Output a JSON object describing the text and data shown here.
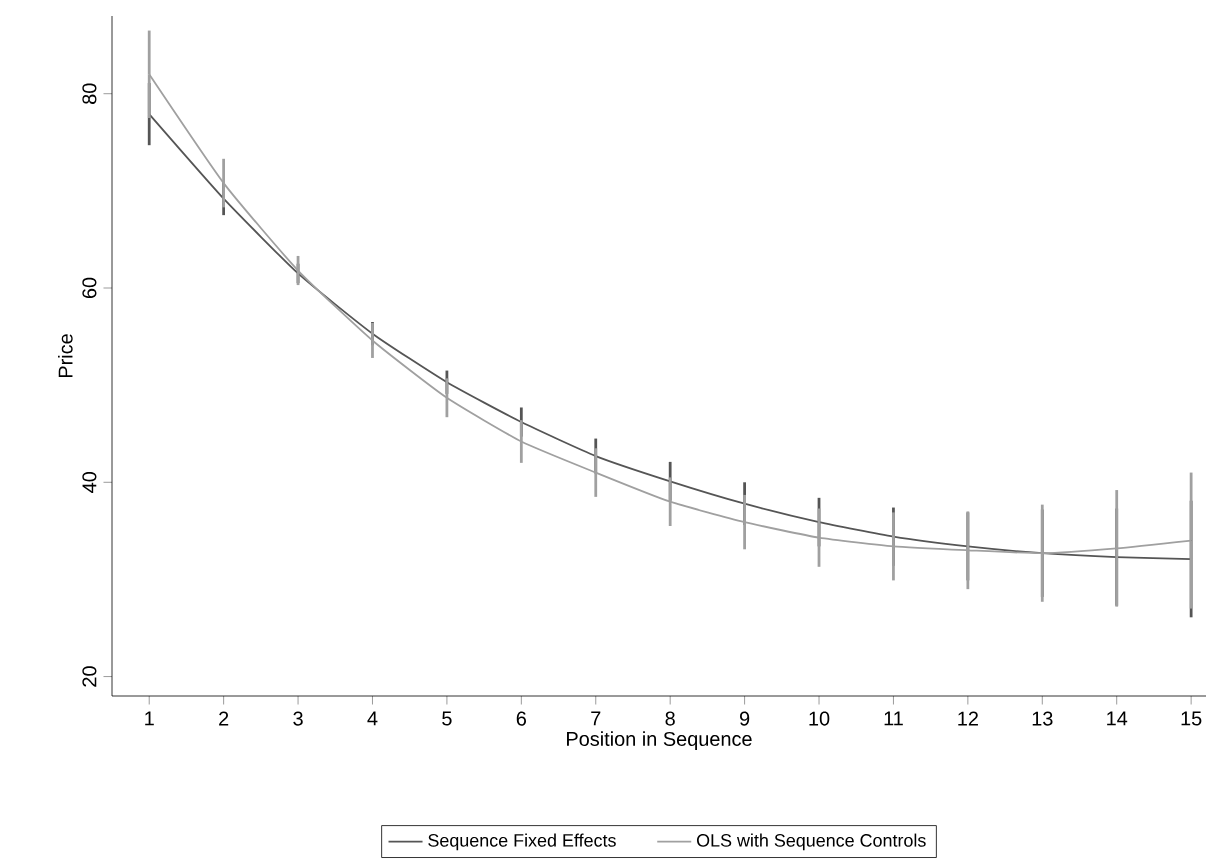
{
  "chart_data": {
    "type": "line",
    "xlabel": "Position in Sequence",
    "ylabel": "Price",
    "x": [
      1,
      2,
      3,
      4,
      5,
      6,
      7,
      8,
      9,
      10,
      11,
      12,
      13,
      14,
      15
    ],
    "series": [
      {
        "name": "Sequence Fixed Effects",
        "color": "#555555",
        "values": [
          77.9,
          69.2,
          61.5,
          55.3,
          50.3,
          46.2,
          42.7,
          40.1,
          37.8,
          35.9,
          34.4,
          33.4,
          32.7,
          32.3,
          32.1
        ],
        "errors": [
          3.2,
          1.7,
          1,
          1.2,
          1.2,
          1.5,
          1.8,
          2,
          2.2,
          2.5,
          3,
          3.5,
          4.5,
          5,
          6
        ]
      },
      {
        "name": "OLS with Sequence Controls",
        "color": "#a0a0a0",
        "values": [
          82.0,
          70.8,
          61.8,
          54.6,
          48.7,
          44.2,
          41.0,
          38.0,
          35.9,
          34.3,
          33.4,
          33.0,
          32.7,
          33.2,
          34.0
        ],
        "errors": [
          4.5,
          2.5,
          1.5,
          1.8,
          2,
          2.2,
          2.5,
          2.5,
          2.8,
          3,
          3.5,
          4,
          5,
          6,
          7
        ]
      }
    ],
    "xlim": [
      0.5,
      15.2
    ],
    "ylim": [
      18,
      88
    ],
    "xticks": [
      1,
      2,
      3,
      4,
      5,
      6,
      7,
      8,
      9,
      10,
      11,
      12,
      13,
      14,
      15
    ],
    "yticks": [
      20,
      40,
      60,
      80
    ],
    "grid": false,
    "legend": "bottom",
    "marker": "none",
    "line_style": "solid"
  }
}
